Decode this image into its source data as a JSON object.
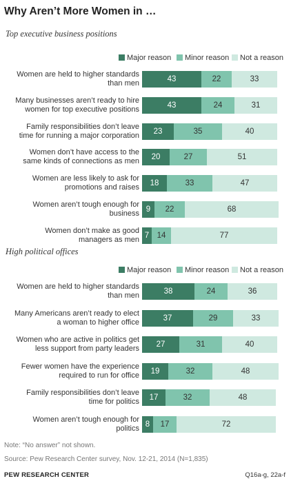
{
  "title": "Why Aren’t More Women in …",
  "legend": {
    "major": "Major reason",
    "minor": "Minor reason",
    "not": "Not a reason"
  },
  "colors": {
    "major": "#3c7d64",
    "minor": "#80c4ad",
    "not": "#cfe9e0",
    "major_text": "#ffffff",
    "other_text": "#333333"
  },
  "chart_data": [
    {
      "type": "bar",
      "orientation": "horizontal",
      "stacked": true,
      "subtitle": "Top executive business positions",
      "categories": [
        "Women are held to higher standards than men",
        "Many businesses aren't ready to hire women for top executive positions",
        "Family responsibilities don't leave time for running a major corporation",
        "Women don't have access to the same kinds of connections as men",
        "Women are less likely to ask for promotions and raises",
        "Women aren't tough enough for business",
        "Women don't make as good managers as men"
      ],
      "label_lines": [
        [
          "Women are held to higher standards",
          "than men"
        ],
        [
          "Many businesses aren’t ready to hire",
          "women for top executive positions"
        ],
        [
          "Family responsibilities don’t leave",
          "time for running a major corporation"
        ],
        [
          "Women don’t have access to the",
          "same kinds of connections as men"
        ],
        [
          "Women are less likely to ask for",
          "promotions and raises"
        ],
        [
          "Women aren’t tough enough for",
          "business"
        ],
        [
          "Women don’t make as good",
          "managers as men"
        ]
      ],
      "series": [
        {
          "name": "Major reason",
          "values": [
            43,
            43,
            23,
            20,
            18,
            9,
            7
          ]
        },
        {
          "name": "Minor reason",
          "values": [
            22,
            24,
            35,
            27,
            33,
            22,
            14
          ]
        },
        {
          "name": "Not a reason",
          "values": [
            33,
            31,
            40,
            51,
            47,
            68,
            77
          ]
        }
      ],
      "xlim": [
        0,
        100
      ],
      "legend_position": "top-right"
    },
    {
      "type": "bar",
      "orientation": "horizontal",
      "stacked": true,
      "subtitle": "High political offices",
      "categories": [
        "Women are held to higher standards than men",
        "Many Americans aren't ready to elect a woman to higher office",
        "Women who are active in politics get less support from party leaders",
        "Fewer women have the experience required to run for office",
        "Family responsibilities don't leave time for politics",
        "Women aren't tough enough for politics"
      ],
      "label_lines": [
        [
          "Women are held to higher standards",
          "than men"
        ],
        [
          "Many Americans aren’t ready to elect",
          "a woman to higher office"
        ],
        [
          "Women who are active in politics get",
          "less support from party leaders"
        ],
        [
          "Fewer women have the experience",
          "required to run for office"
        ],
        [
          "Family responsibilities don’t leave",
          "time for politics"
        ],
        [
          "Women aren’t tough enough for",
          "politics"
        ]
      ],
      "series": [
        {
          "name": "Major reason",
          "values": [
            38,
            37,
            27,
            19,
            17,
            8
          ]
        },
        {
          "name": "Minor reason",
          "values": [
            24,
            29,
            31,
            32,
            32,
            17
          ]
        },
        {
          "name": "Not a reason",
          "values": [
            36,
            33,
            40,
            48,
            48,
            72
          ]
        }
      ],
      "xlim": [
        0,
        100
      ],
      "legend_position": "top-right"
    }
  ],
  "note": "Note: “No answer” not shown.",
  "source": "Source: Pew Research Center survey, Nov. 12-21, 2014 (N=1,835)",
  "footer": {
    "org": "PEW RESEARCH CENTER",
    "question_ids": "Q16a-g, 22a-f"
  }
}
